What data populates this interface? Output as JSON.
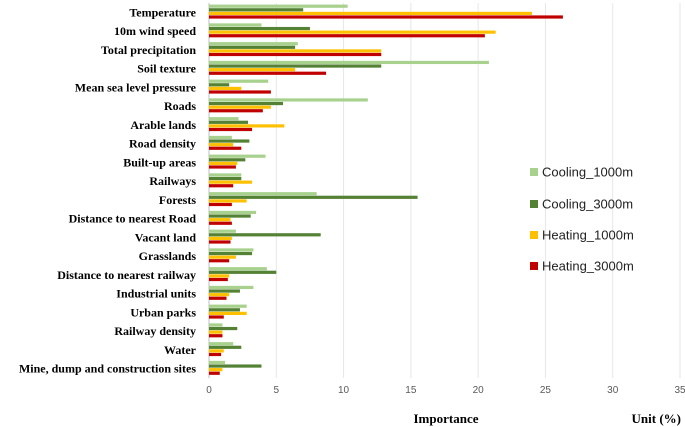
{
  "chart_data": {
    "type": "bar",
    "orientation": "horizontal",
    "title": "",
    "xlabel": "Importance",
    "unit_label": "Unit (%)",
    "xlim": [
      0,
      35
    ],
    "xticks": [
      0,
      5,
      10,
      15,
      20,
      25,
      30,
      35
    ],
    "grid": true,
    "legend_position": "right",
    "categories": [
      "Temperature",
      "10m wind speed",
      "Total precipitation",
      "Soil texture",
      "Mean sea level pressure",
      "Roads",
      "Arable lands",
      "Road density",
      "Built-up areas",
      "Railways",
      "Forests",
      "Distance to nearest Road",
      "Vacant land",
      "Grasslands",
      "Distance to nearest railway",
      "Industrial units",
      "Urban parks",
      "Railway density",
      "Water",
      "Mine, dump and construction sites"
    ],
    "series": [
      {
        "name": "Cooling_1000m",
        "color": "#a9d18e",
        "values": [
          10.3,
          3.9,
          6.6,
          20.8,
          4.4,
          11.8,
          2.2,
          1.7,
          4.2,
          2.4,
          8.0,
          3.5,
          2.0,
          3.3,
          4.3,
          3.3,
          2.8,
          1.0,
          1.8,
          1.2
        ]
      },
      {
        "name": "Cooling_3000m",
        "color": "#548235",
        "values": [
          7.0,
          7.5,
          6.4,
          12.8,
          1.5,
          5.5,
          2.9,
          3.0,
          2.7,
          2.4,
          15.5,
          3.1,
          8.3,
          3.2,
          5.0,
          2.3,
          2.3,
          2.1,
          2.4,
          3.9
        ]
      },
      {
        "name": "Heating_1000m",
        "color": "#ffc000",
        "values": [
          24.0,
          21.3,
          12.8,
          6.4,
          2.4,
          4.6,
          5.6,
          1.8,
          2.1,
          3.2,
          2.8,
          1.6,
          1.7,
          2.0,
          1.5,
          1.5,
          2.8,
          1.0,
          1.1,
          1.0
        ]
      },
      {
        "name": "Heating_3000m",
        "color": "#c00000",
        "values": [
          26.3,
          20.5,
          12.8,
          8.7,
          4.6,
          4.0,
          3.2,
          2.4,
          2.0,
          1.8,
          1.7,
          1.7,
          1.6,
          1.5,
          1.4,
          1.3,
          1.1,
          1.0,
          0.9,
          0.8
        ]
      }
    ]
  }
}
